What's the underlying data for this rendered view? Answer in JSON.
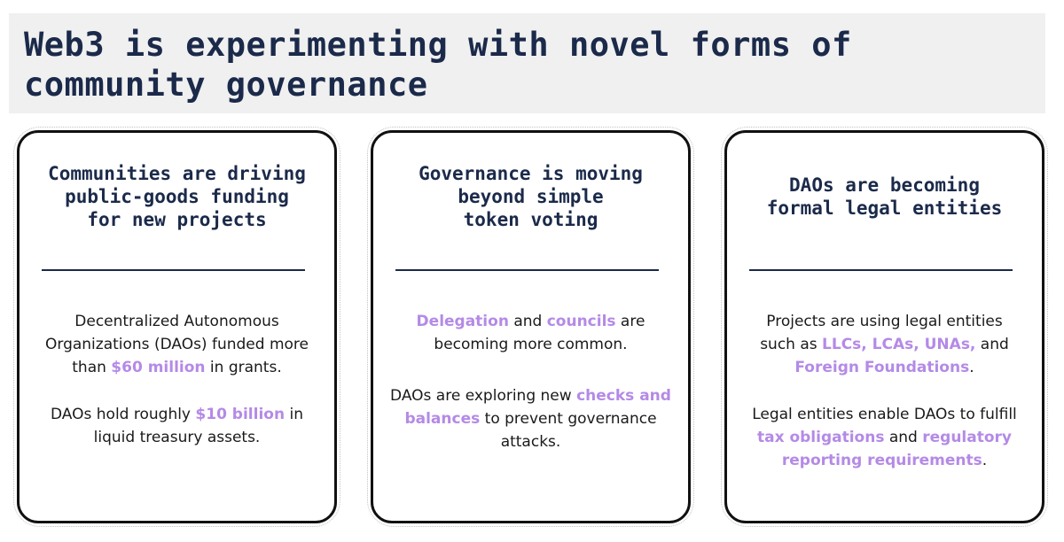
{
  "title": "Web3 is experimenting with novel forms of community governance",
  "colors": {
    "heading": "#1b2a4a",
    "highlight": "#b48ae6",
    "banner": "#f0f0f0"
  },
  "cards": [
    {
      "heading": [
        "Communities are driving",
        "public-goods funding",
        "for new projects"
      ],
      "p1": {
        "a": "Decentralized Autonomous Organizations (DAOs) funded more than ",
        "h1": "$60 million",
        "b": " in grants."
      },
      "p2": {
        "a": "DAOs hold roughly ",
        "h1": "$10 billion",
        "b": " in liquid treasury assets."
      }
    },
    {
      "heading": [
        "Governance is moving",
        "beyond simple",
        "token voting"
      ],
      "p1": {
        "h1": "Delegation",
        "a": " and ",
        "h2": "councils",
        "b": " are becoming more common."
      },
      "p2": {
        "a": "DAOs are exploring new ",
        "h1": "checks and balances",
        "b": " to prevent governance attacks."
      }
    },
    {
      "heading": [
        "DAOs are becoming",
        "formal legal entities"
      ],
      "p1": {
        "a": "Projects are using legal entities such as ",
        "h1": "LLCs, LCAs, UNAs,",
        "b": " and ",
        "h2": "Foreign Foundations",
        "c": "."
      },
      "p2": {
        "a": "Legal entities enable DAOs to fulfill ",
        "h1": "tax obligations",
        "b": " and ",
        "h2": "regulatory reporting requirements",
        "c": "."
      }
    }
  ]
}
